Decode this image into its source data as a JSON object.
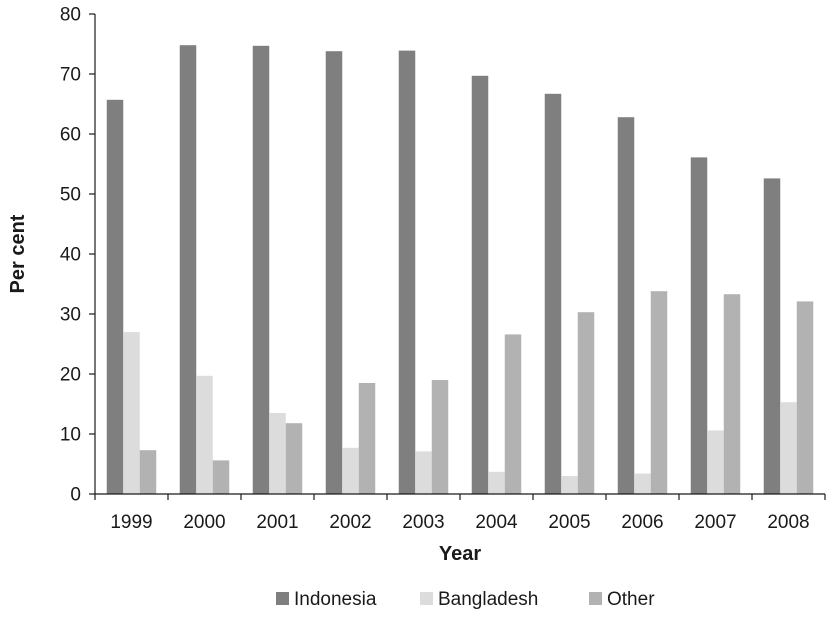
{
  "chart_data": {
    "type": "bar",
    "title": "",
    "xlabel": "Year",
    "ylabel": "Per cent",
    "ylim": [
      0,
      80
    ],
    "yticks": [
      0,
      10,
      20,
      30,
      40,
      50,
      60,
      70,
      80
    ],
    "grid": false,
    "legend_position": "bottom",
    "categories": [
      "1999",
      "2000",
      "2001",
      "2002",
      "2003",
      "2004",
      "2005",
      "2006",
      "2007",
      "2008"
    ],
    "series": [
      {
        "name": "Indonesia",
        "color": "#7f7f7f",
        "values": [
          65.7,
          74.8,
          74.7,
          73.8,
          73.9,
          69.7,
          66.7,
          62.8,
          56.1,
          52.6
        ]
      },
      {
        "name": "Bangladesh",
        "color": "#dcdcdc",
        "values": [
          27.0,
          19.7,
          13.5,
          7.7,
          7.1,
          3.7,
          3.0,
          3.4,
          10.6,
          15.3
        ]
      },
      {
        "name": "Other",
        "color": "#b2b2b2",
        "values": [
          7.3,
          5.6,
          11.8,
          18.5,
          19.0,
          26.6,
          30.3,
          33.8,
          33.3,
          32.1
        ]
      }
    ]
  }
}
